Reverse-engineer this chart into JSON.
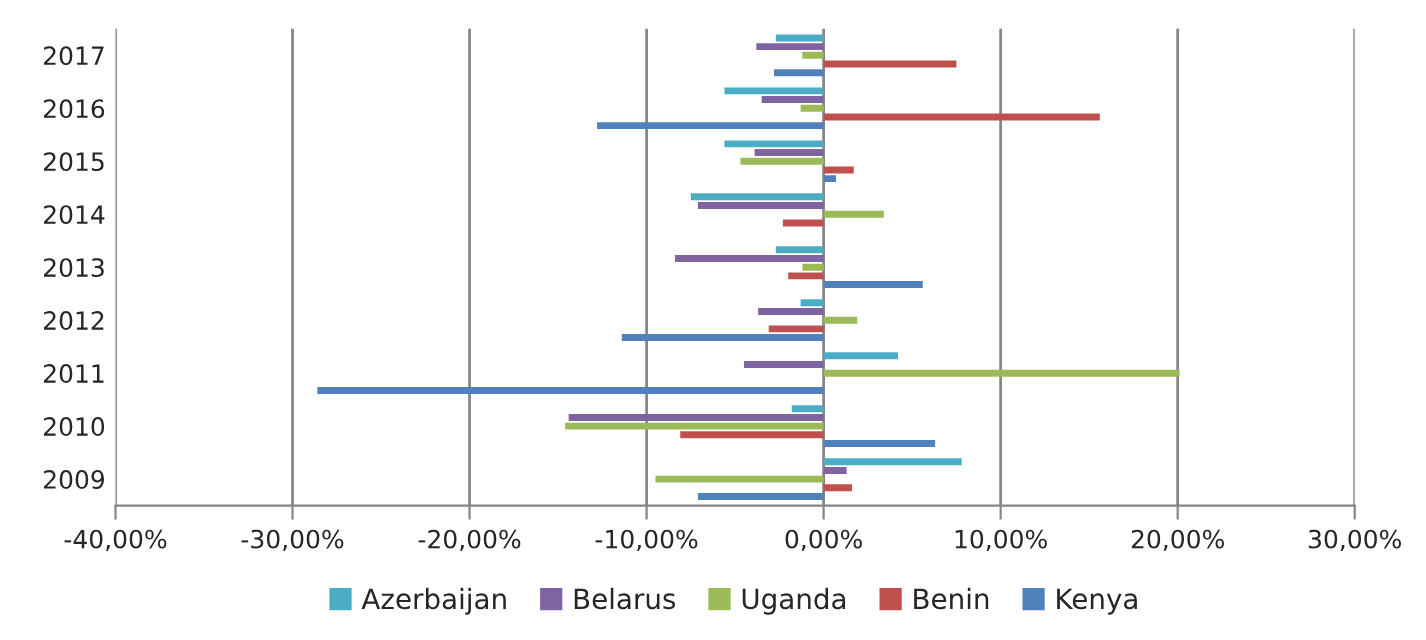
{
  "chart_data": {
    "type": "bar",
    "orientation": "horizontal",
    "categories": [
      "2017",
      "2016",
      "2015",
      "2014",
      "2013",
      "2012",
      "2011",
      "2010",
      "2009"
    ],
    "series": [
      {
        "name": "Azerbaijan",
        "color": "#4bacc6",
        "values": [
          -2.7,
          -5.6,
          -5.6,
          -7.5,
          -2.7,
          -1.3,
          4.2,
          -1.8,
          7.8
        ]
      },
      {
        "name": "Belarus",
        "color": "#8064a2",
        "values": [
          -3.8,
          -3.5,
          -3.9,
          -7.1,
          -8.4,
          -3.7,
          -4.5,
          -14.4,
          1.3
        ]
      },
      {
        "name": "Uganda",
        "color": "#9bbb59",
        "values": [
          -1.2,
          -1.3,
          -4.7,
          3.4,
          -1.2,
          1.9,
          20.1,
          -14.6,
          -9.5
        ]
      },
      {
        "name": "Benin",
        "color": "#c0504d",
        "values": [
          7.5,
          15.6,
          1.7,
          -2.3,
          -2.0,
          -3.1,
          null,
          -8.1,
          1.6
        ]
      },
      {
        "name": "Kenya",
        "color": "#4f81bd",
        "values": [
          -2.8,
          -12.8,
          0.7,
          null,
          5.6,
          -11.4,
          -28.6,
          6.3,
          -7.1
        ]
      }
    ],
    "xlim": [
      -40,
      30
    ],
    "xticks": [
      {
        "value": -40,
        "label": "-40,00%"
      },
      {
        "value": -30,
        "label": "-30,00%"
      },
      {
        "value": -20,
        "label": "-20,00%"
      },
      {
        "value": -10,
        "label": "-10,00%"
      },
      {
        "value": 0,
        "label": "0,00%"
      },
      {
        "value": 10,
        "label": "10,00%"
      },
      {
        "value": 20,
        "label": "20,00%"
      },
      {
        "value": 30,
        "label": "30,00%"
      }
    ],
    "grid": "x",
    "legend": "bottom"
  }
}
